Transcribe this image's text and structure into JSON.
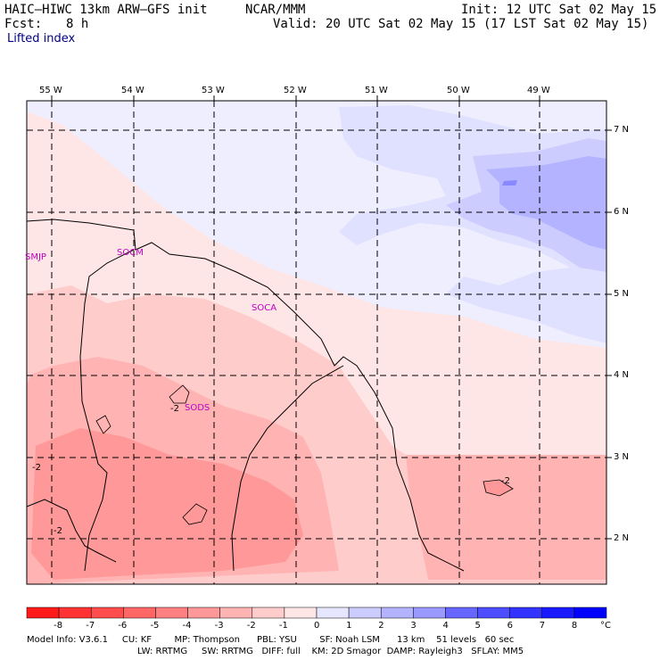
{
  "header": {
    "title": "HAIC–HIWC 13km ARW–GFS init",
    "org": "NCAR/MMM",
    "init": "Init: 12 UTC Sat 02 May 15",
    "fcst_label": "Fcst:",
    "fcst_value": "8 h",
    "valid": "Valid: 20 UTC Sat 02 May 15 (17 LST Sat 02 May 15)",
    "field": "Lifted index"
  },
  "map": {
    "longitudes": [
      "55 W",
      "54 W",
      "53 W",
      "52 W",
      "51 W",
      "50 W",
      "49 W"
    ],
    "latitudes": [
      "7 N",
      "6 N",
      "5 N",
      "4 N",
      "3 N",
      "2 N"
    ],
    "stations": [
      "SMJP",
      "SOCM",
      "SOCA",
      "SODS"
    ],
    "contour_labels": [
      "-2",
      "-2",
      "-2",
      "-2"
    ]
  },
  "colorbar": {
    "ticks": [
      "-8",
      "-7",
      "-6",
      "-5",
      "-4",
      "-3",
      "-2",
      "-1",
      "0",
      "1",
      "2",
      "3",
      "4",
      "5",
      "6",
      "7",
      "8"
    ],
    "unit": "°C",
    "colors": [
      "#ff1a1a",
      "#ff3333",
      "#ff4d4d",
      "#ff6666",
      "#ff8080",
      "#ff9999",
      "#ffb3b3",
      "#ffcccc",
      "#ffe6e6",
      "#e6e6ff",
      "#ccccff",
      "#b3b3ff",
      "#9999ff",
      "#6666ff",
      "#4d4dff",
      "#3333ff",
      "#1a1aff",
      "#0000ff"
    ]
  },
  "footer": {
    "line1": "Model Info: V3.6.1     CU: KF        MP: Thompson      PBL: YSU        SF: Noah LSM      13 km    51 levels   60 sec",
    "line2": "LW: RRTMG     SW: RRTMG   DIFF: full    KM: 2D Smagor  DAMP: Rayleigh3   SFLAY: MM5"
  }
}
